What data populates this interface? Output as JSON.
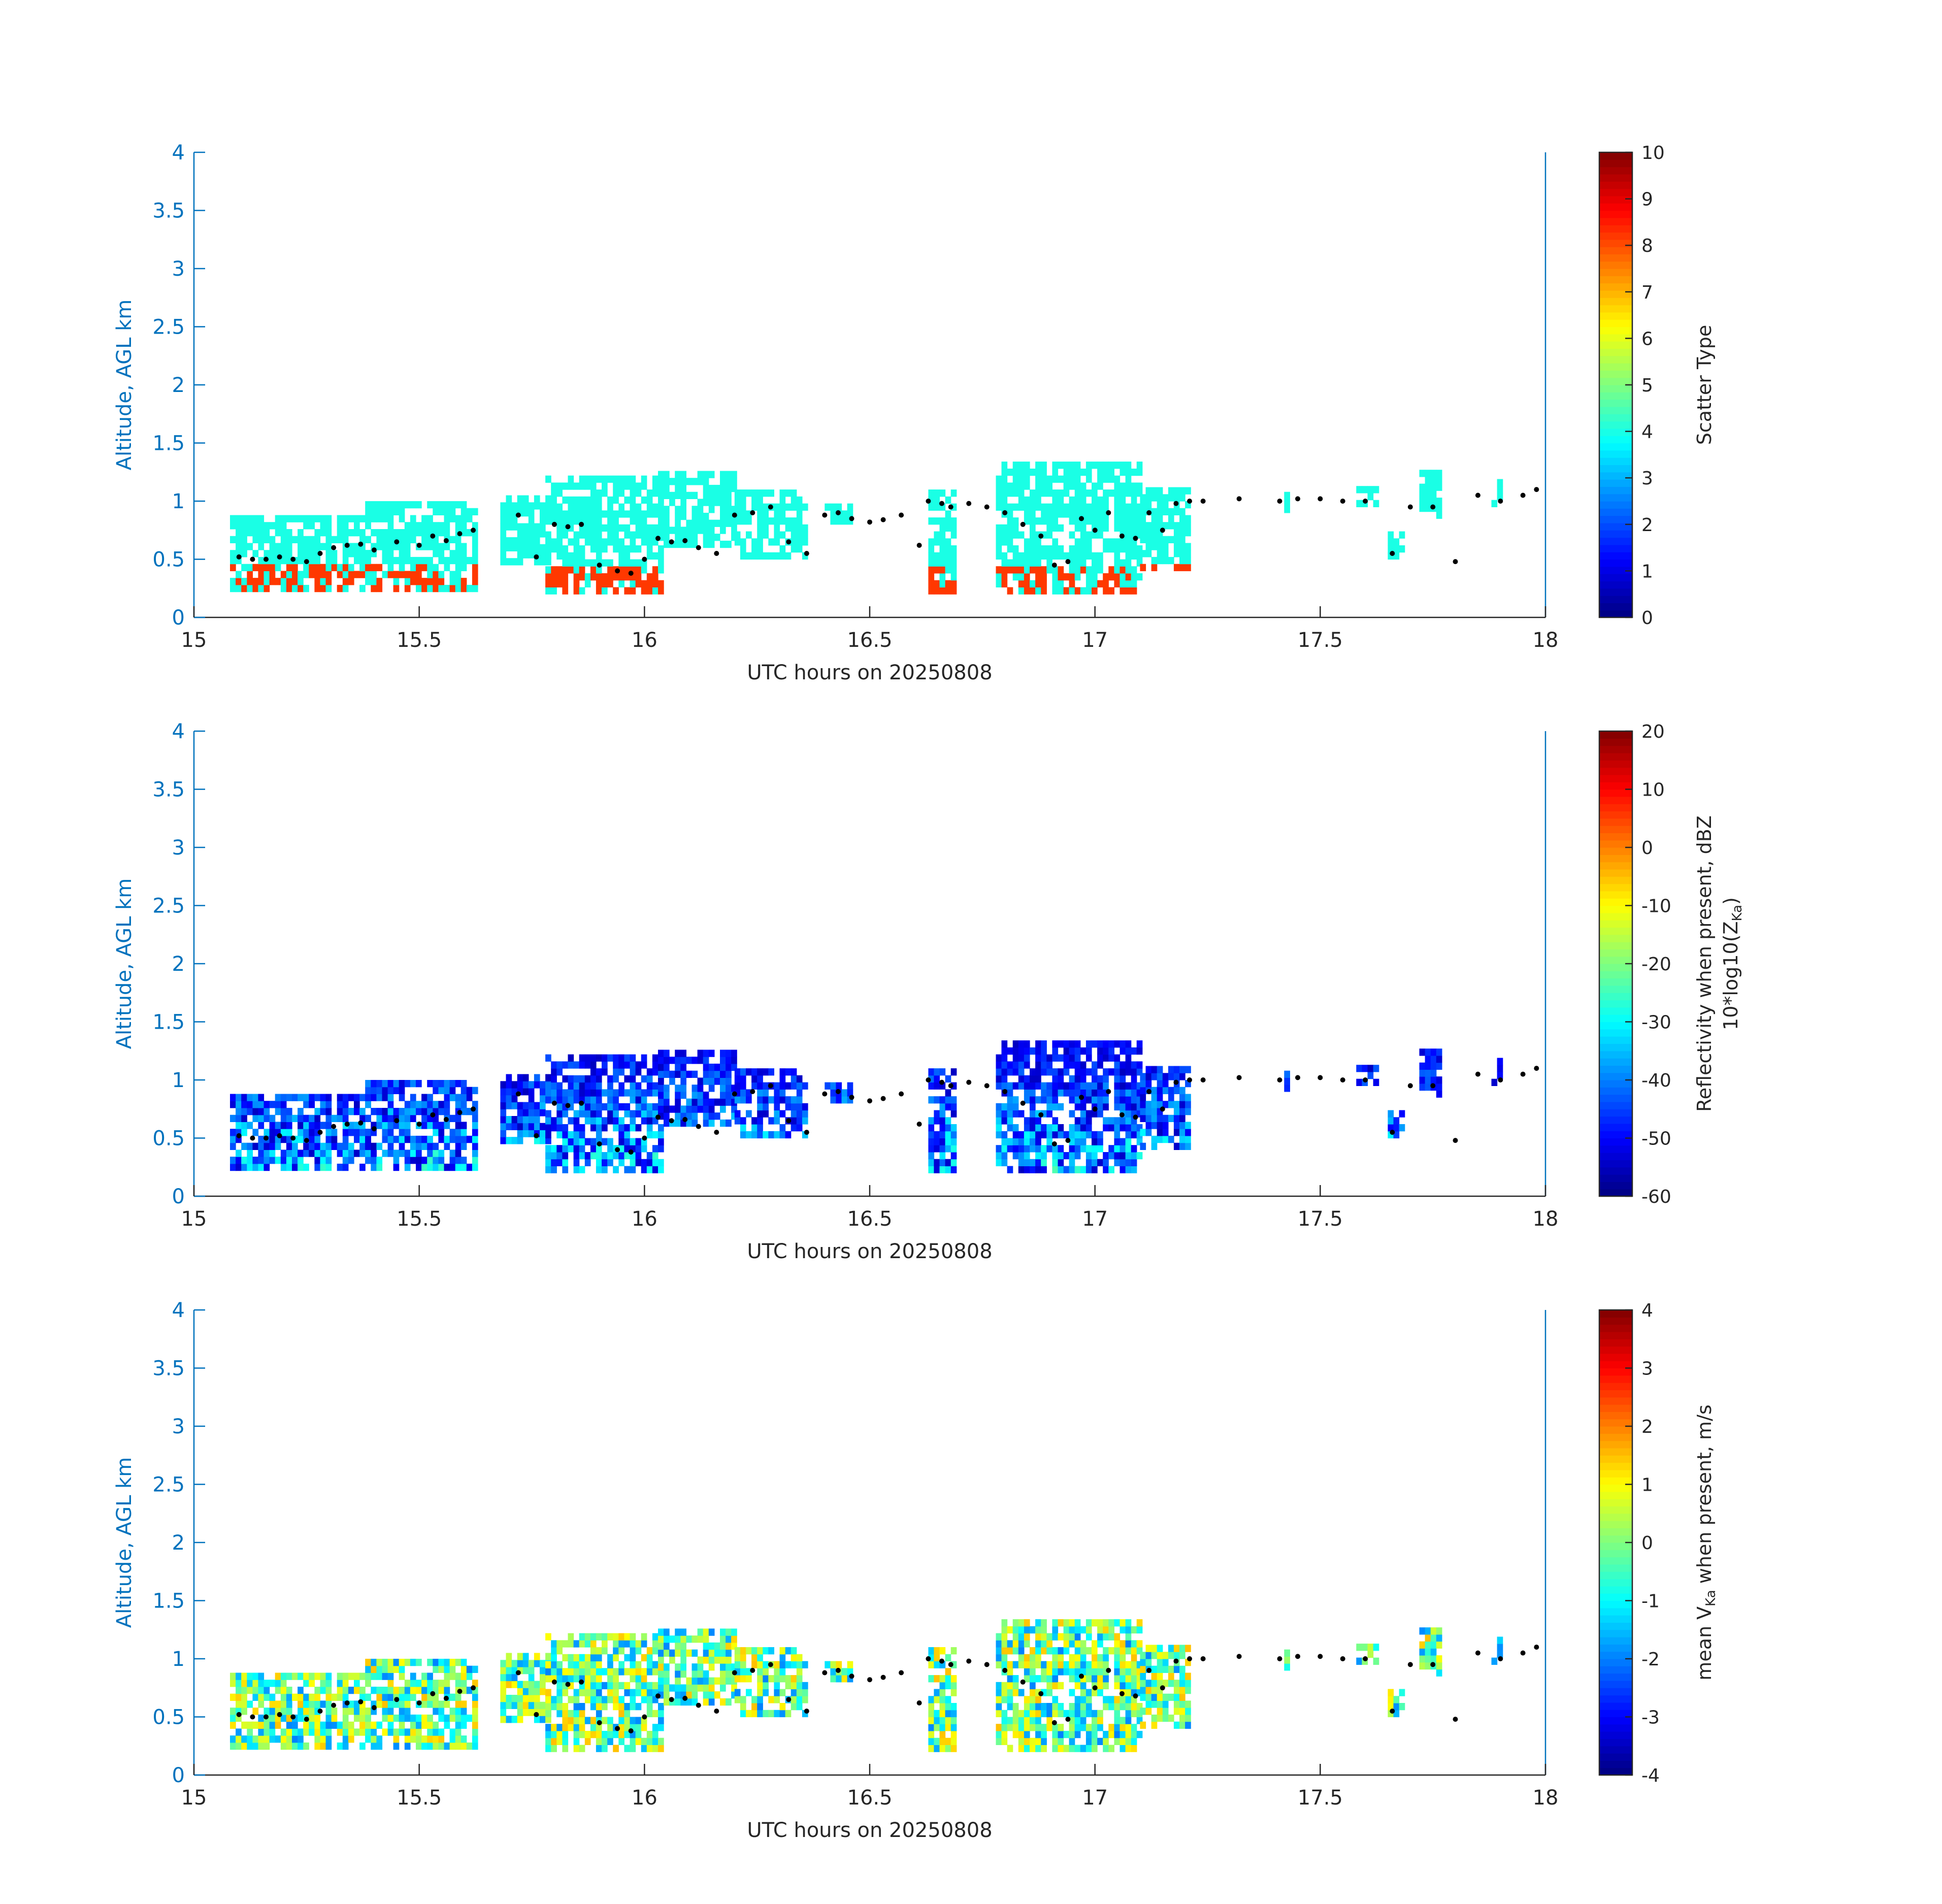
{
  "chart_data": [
    {
      "type": "heatmap",
      "xlabel": "UTC hours on 20250808",
      "ylabel": "Altitude, AGL km",
      "xlim": [
        15,
        18
      ],
      "ylim": [
        0,
        4
      ],
      "xticks": [
        "15",
        "15.5",
        "16",
        "16.5",
        "17",
        "17.5",
        "18"
      ],
      "yticks": [
        "0",
        "0.5",
        "1",
        "1.5",
        "2",
        "2.5",
        "3",
        "3.5",
        "4"
      ],
      "colorbar": {
        "label": "Scatter Type",
        "label_line2": "",
        "clim": [
          0,
          10
        ],
        "ticks": [
          "0",
          "1",
          "2",
          "3",
          "4",
          "5",
          "6",
          "7",
          "8",
          "9",
          "10"
        ]
      },
      "colormap": "jet",
      "field": "scatter",
      "cloud_base_marker_color": "#000000"
    },
    {
      "type": "heatmap",
      "xlabel": "UTC hours on 20250808",
      "ylabel": "Altitude, AGL km",
      "xlim": [
        15,
        18
      ],
      "ylim": [
        0,
        4
      ],
      "xticks": [
        "15",
        "15.5",
        "16",
        "16.5",
        "17",
        "17.5",
        "18"
      ],
      "yticks": [
        "0",
        "0.5",
        "1",
        "1.5",
        "2",
        "2.5",
        "3",
        "3.5",
        "4"
      ],
      "colorbar": {
        "label": "Reflectivity when present, dBZ",
        "label_line2": "10*log10(Z",
        "label_line2_sub": "Ka",
        "label_line2_end": ")",
        "clim": [
          -60,
          20
        ],
        "ticks": [
          "-60",
          "-50",
          "-40",
          "-30",
          "-20",
          "-10",
          "0",
          "10",
          "20"
        ]
      },
      "colormap": "jet",
      "field": "reflectivity",
      "cloud_base_marker_color": "#000000"
    },
    {
      "type": "heatmap",
      "xlabel": "UTC hours on 20250808",
      "ylabel": "Altitude, AGL km",
      "xlim": [
        15,
        18
      ],
      "ylim": [
        0,
        4
      ],
      "xticks": [
        "15",
        "15.5",
        "16",
        "16.5",
        "17",
        "17.5",
        "18"
      ],
      "yticks": [
        "0",
        "0.5",
        "1",
        "1.5",
        "2",
        "2.5",
        "3",
        "3.5",
        "4"
      ],
      "colorbar": {
        "label": "mean V",
        "label_sub": "Ka",
        "label_end": " when present, m/s",
        "clim": [
          -4,
          4
        ],
        "ticks": [
          "-4",
          "-3",
          "-2",
          "-1",
          "0",
          "1",
          "2",
          "3",
          "4"
        ]
      },
      "colormap": "jet",
      "field": "velocity",
      "cloud_base_marker_color": "#000000"
    }
  ],
  "data_summary": {
    "cloud_base_km": [
      [
        15.1,
        0.52
      ],
      [
        15.13,
        0.5
      ],
      [
        15.16,
        0.5
      ],
      [
        15.19,
        0.52
      ],
      [
        15.22,
        0.5
      ],
      [
        15.25,
        0.48
      ],
      [
        15.28,
        0.55
      ],
      [
        15.31,
        0.6
      ],
      [
        15.34,
        0.62
      ],
      [
        15.37,
        0.63
      ],
      [
        15.4,
        0.58
      ],
      [
        15.45,
        0.65
      ],
      [
        15.5,
        0.62
      ],
      [
        15.53,
        0.7
      ],
      [
        15.56,
        0.66
      ],
      [
        15.59,
        0.72
      ],
      [
        15.62,
        0.75
      ],
      [
        15.72,
        0.88
      ],
      [
        15.76,
        0.52
      ],
      [
        15.8,
        0.8
      ],
      [
        15.83,
        0.78
      ],
      [
        15.86,
        0.8
      ],
      [
        15.9,
        0.45
      ],
      [
        15.94,
        0.4
      ],
      [
        15.97,
        0.38
      ],
      [
        16.0,
        0.5
      ],
      [
        16.03,
        0.68
      ],
      [
        16.06,
        0.65
      ],
      [
        16.09,
        0.66
      ],
      [
        16.12,
        0.6
      ],
      [
        16.16,
        0.55
      ],
      [
        16.2,
        0.88
      ],
      [
        16.24,
        0.9
      ],
      [
        16.28,
        0.95
      ],
      [
        16.32,
        0.65
      ],
      [
        16.36,
        0.55
      ],
      [
        16.4,
        0.88
      ],
      [
        16.43,
        0.9
      ],
      [
        16.46,
        0.85
      ],
      [
        16.5,
        0.82
      ],
      [
        16.53,
        0.84
      ],
      [
        16.57,
        0.88
      ],
      [
        16.61,
        0.62
      ],
      [
        16.63,
        1.0
      ],
      [
        16.66,
        0.98
      ],
      [
        16.68,
        0.95
      ],
      [
        16.72,
        0.98
      ],
      [
        16.76,
        0.95
      ],
      [
        16.8,
        0.9
      ],
      [
        16.84,
        0.8
      ],
      [
        16.88,
        0.7
      ],
      [
        16.91,
        0.45
      ],
      [
        16.94,
        0.48
      ],
      [
        16.97,
        0.85
      ],
      [
        17.0,
        0.75
      ],
      [
        17.03,
        0.9
      ],
      [
        17.06,
        0.7
      ],
      [
        17.09,
        0.68
      ],
      [
        17.12,
        0.9
      ],
      [
        17.15,
        0.75
      ],
      [
        17.18,
        0.98
      ],
      [
        17.21,
        1.0
      ],
      [
        17.24,
        1.0
      ],
      [
        17.32,
        1.02
      ],
      [
        17.41,
        1.0
      ],
      [
        17.45,
        1.02
      ],
      [
        17.5,
        1.02
      ],
      [
        17.55,
        1.0
      ],
      [
        17.6,
        1.0
      ],
      [
        17.66,
        0.55
      ],
      [
        17.7,
        0.95
      ],
      [
        17.75,
        0.95
      ],
      [
        17.8,
        0.48
      ],
      [
        17.85,
        1.05
      ],
      [
        17.9,
        1.0
      ],
      [
        17.95,
        1.05
      ],
      [
        17.98,
        1.1
      ]
    ]
  }
}
